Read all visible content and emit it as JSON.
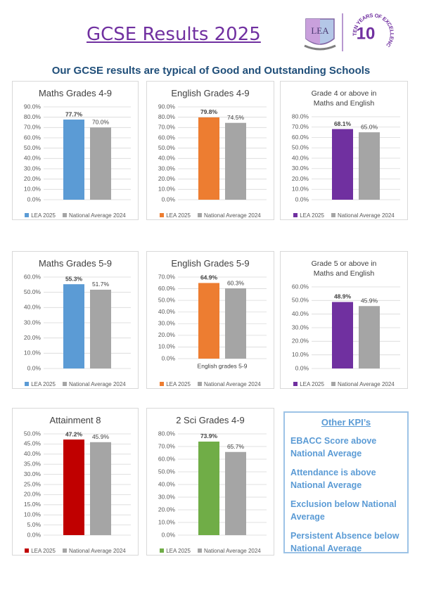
{
  "header": {
    "title": "GCSE Results 2025",
    "subtitle": "Our GCSE results are typical of Good and Outstanding Schools"
  },
  "logo": {
    "initials": "LEA",
    "motto": "TEN YEARS OF EXCELLENCE",
    "number": "10"
  },
  "chart_data": [
    {
      "type": "bar",
      "title": "Maths Grades 4-9",
      "categories": [
        null
      ],
      "series": [
        {
          "name": "LEA 2025",
          "color": "#5b9bd5",
          "values": [
            77.7
          ],
          "value_labels": [
            "77.7%"
          ]
        },
        {
          "name": "National Average 2024",
          "color": "#a5a5a5",
          "values": [
            70.0
          ],
          "value_labels": [
            "70.0%"
          ]
        }
      ],
      "ylim": [
        0,
        90
      ],
      "yticks": [
        {
          "value": 0,
          "label": "0.0%"
        },
        {
          "value": 10,
          "label": "10.0%"
        },
        {
          "value": 20,
          "label": "20.0%"
        },
        {
          "value": 30,
          "label": "30.0%"
        },
        {
          "value": 40,
          "label": "40.0%"
        },
        {
          "value": 50,
          "label": "50.0%"
        },
        {
          "value": 60,
          "label": "60.0%"
        },
        {
          "value": 70,
          "label": "70.0%"
        },
        {
          "value": 80,
          "label": "80.0%"
        },
        {
          "value": 90,
          "label": "90.0%"
        }
      ],
      "grid": true,
      "legend": "bottom"
    },
    {
      "type": "bar",
      "title": "English Grades 4-9",
      "categories": [
        null
      ],
      "series": [
        {
          "name": "LEA 2025",
          "color": "#ed7d31",
          "values": [
            79.8
          ],
          "value_labels": [
            "79.8%"
          ]
        },
        {
          "name": "National Average 2024",
          "color": "#a5a5a5",
          "values": [
            74.5
          ],
          "value_labels": [
            "74.5%"
          ]
        }
      ],
      "ylim": [
        0,
        90
      ],
      "yticks": [
        {
          "value": 0,
          "label": "0.0%"
        },
        {
          "value": 10,
          "label": "10.0%"
        },
        {
          "value": 20,
          "label": "20.0%"
        },
        {
          "value": 30,
          "label": "30.0%"
        },
        {
          "value": 40,
          "label": "40.0%"
        },
        {
          "value": 50,
          "label": "50.0%"
        },
        {
          "value": 60,
          "label": "60.0%"
        },
        {
          "value": 70,
          "label": "70.0%"
        },
        {
          "value": 80,
          "label": "80.0%"
        },
        {
          "value": 90,
          "label": "90.0%"
        }
      ],
      "grid": true,
      "legend": "bottom"
    },
    {
      "type": "bar",
      "title": "Grade 4 or above in  Maths and English",
      "categories": [
        null
      ],
      "series": [
        {
          "name": "LEA 2025",
          "color": "#7030a0",
          "values": [
            68.1
          ],
          "value_labels": [
            "68.1%"
          ]
        },
        {
          "name": "National Average 2024",
          "color": "#a5a5a5",
          "values": [
            65.0
          ],
          "value_labels": [
            "65.0%"
          ]
        }
      ],
      "ylim": [
        0,
        80
      ],
      "yticks": [
        {
          "value": 0,
          "label": "0.0%"
        },
        {
          "value": 10,
          "label": "10.0%"
        },
        {
          "value": 20,
          "label": "20.0%"
        },
        {
          "value": 30,
          "label": "30.0%"
        },
        {
          "value": 40,
          "label": "40.0%"
        },
        {
          "value": 50,
          "label": "50.0%"
        },
        {
          "value": 60,
          "label": "60.0%"
        },
        {
          "value": 70,
          "label": "70.0%"
        },
        {
          "value": 80,
          "label": "80.0%"
        }
      ],
      "grid": true,
      "legend": "bottom"
    },
    {
      "type": "bar",
      "title": "Maths Grades 5-9",
      "categories": [
        null
      ],
      "series": [
        {
          "name": "LEA 2025",
          "color": "#5b9bd5",
          "values": [
            55.3
          ],
          "value_labels": [
            "55.3%"
          ]
        },
        {
          "name": "National Average 2024",
          "color": "#a5a5a5",
          "values": [
            51.7
          ],
          "value_labels": [
            "51.7%"
          ]
        }
      ],
      "ylim": [
        0,
        60
      ],
      "yticks": [
        {
          "value": 0,
          "label": "0.0%"
        },
        {
          "value": 10,
          "label": "10.0%"
        },
        {
          "value": 20,
          "label": "20.0%"
        },
        {
          "value": 30,
          "label": "30.0%"
        },
        {
          "value": 40,
          "label": "40.0%"
        },
        {
          "value": 50,
          "label": "50.0%"
        },
        {
          "value": 60,
          "label": "60.0%"
        }
      ],
      "grid": true,
      "legend": "bottom"
    },
    {
      "type": "bar",
      "title": "English Grades 5-9",
      "categories": [
        "English grades 5-9"
      ],
      "series": [
        {
          "name": "LEA 2025",
          "color": "#ed7d31",
          "values": [
            64.9
          ],
          "value_labels": [
            "64.9%"
          ]
        },
        {
          "name": "National Average 2024",
          "color": "#a5a5a5",
          "values": [
            60.3
          ],
          "value_labels": [
            "60.3%"
          ]
        }
      ],
      "ylim": [
        0,
        70
      ],
      "yticks": [
        {
          "value": 0,
          "label": "0.0%"
        },
        {
          "value": 10,
          "label": "10.0%"
        },
        {
          "value": 20,
          "label": "20.0%"
        },
        {
          "value": 30,
          "label": "30.0%"
        },
        {
          "value": 40,
          "label": "40.0%"
        },
        {
          "value": 50,
          "label": "50.0%"
        },
        {
          "value": 60,
          "label": "60.0%"
        },
        {
          "value": 70,
          "label": "70.0%"
        }
      ],
      "grid": true,
      "legend": "bottom"
    },
    {
      "type": "bar",
      "title": "Grade 5 or above in  Maths and English",
      "categories": [
        null
      ],
      "series": [
        {
          "name": "LEA 2025",
          "color": "#7030a0",
          "values": [
            48.9
          ],
          "value_labels": [
            "48.9%"
          ]
        },
        {
          "name": "National Average 2024",
          "color": "#a5a5a5",
          "values": [
            45.9
          ],
          "value_labels": [
            "45.9%"
          ]
        }
      ],
      "ylim": [
        0,
        60
      ],
      "yticks": [
        {
          "value": 0,
          "label": "0.0%"
        },
        {
          "value": 10,
          "label": "10.0%"
        },
        {
          "value": 20,
          "label": "20.0%"
        },
        {
          "value": 30,
          "label": "30.0%"
        },
        {
          "value": 40,
          "label": "40.0%"
        },
        {
          "value": 50,
          "label": "50.0%"
        },
        {
          "value": 60,
          "label": "60.0%"
        }
      ],
      "grid": true,
      "legend": "bottom"
    },
    {
      "type": "bar",
      "title": "Attainment 8",
      "categories": [
        null
      ],
      "series": [
        {
          "name": "LEA 2025",
          "color": "#c00000",
          "values": [
            47.2
          ],
          "value_labels": [
            "47.2%"
          ]
        },
        {
          "name": "National Average 2024",
          "color": "#a5a5a5",
          "values": [
            45.9
          ],
          "value_labels": [
            "45.9%"
          ]
        }
      ],
      "ylim": [
        0,
        50
      ],
      "yticks": [
        {
          "value": 0,
          "label": "0.0%"
        },
        {
          "value": 5,
          "label": "5.0%"
        },
        {
          "value": 10,
          "label": "10.0%"
        },
        {
          "value": 15,
          "label": "15.0%"
        },
        {
          "value": 20,
          "label": "20.0%"
        },
        {
          "value": 25,
          "label": "25.0%"
        },
        {
          "value": 30,
          "label": "30.0%"
        },
        {
          "value": 35,
          "label": "35.0%"
        },
        {
          "value": 40,
          "label": "40.0%"
        },
        {
          "value": 45,
          "label": "45.0%"
        },
        {
          "value": 50,
          "label": "50.0%"
        }
      ],
      "grid": true,
      "legend": "bottom"
    },
    {
      "type": "bar",
      "title": "2 Sci Grades 4-9",
      "categories": [
        null
      ],
      "series": [
        {
          "name": "LEA 2025",
          "color": "#70ad47",
          "values": [
            73.9
          ],
          "value_labels": [
            "73.9%"
          ]
        },
        {
          "name": "National Average 2024",
          "color": "#a5a5a5",
          "values": [
            65.7
          ],
          "value_labels": [
            "65.7%"
          ]
        }
      ],
      "ylim": [
        0,
        80
      ],
      "yticks": [
        {
          "value": 0,
          "label": "0.0%"
        },
        {
          "value": 10,
          "label": "10.0%"
        },
        {
          "value": 20,
          "label": "20.0%"
        },
        {
          "value": 30,
          "label": "30.0%"
        },
        {
          "value": 40,
          "label": "40.0%"
        },
        {
          "value": 50,
          "label": "50.0%"
        },
        {
          "value": 60,
          "label": "60.0%"
        },
        {
          "value": 70,
          "label": "70.0%"
        },
        {
          "value": 80,
          "label": "80.0%"
        }
      ],
      "grid": true,
      "legend": "bottom"
    }
  ],
  "kpi": {
    "title": "Other KPI’s",
    "items": [
      "EBACC Score above National Average",
      "Attendance is above National Average",
      "Exclusion below National Average",
      "Persistent Absence below National Average"
    ]
  }
}
